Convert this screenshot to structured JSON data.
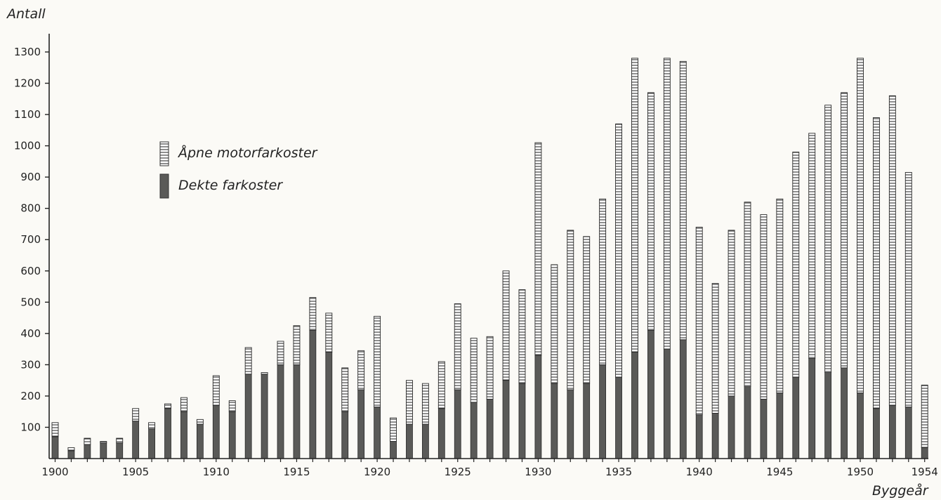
{
  "chart_data": {
    "type": "bar",
    "stacked": true,
    "title": "",
    "ylabel": "Antall",
    "xlabel": "Byggeår",
    "ylim": [
      0,
      1300
    ],
    "yticks": [
      100,
      200,
      300,
      400,
      500,
      600,
      700,
      800,
      900,
      1000,
      1100,
      1200,
      1300
    ],
    "xtick_labels": [
      "1900",
      "1905",
      "1910",
      "1915",
      "1920",
      "1925",
      "1930",
      "1935",
      "1940",
      "1945",
      "1950",
      "1954"
    ],
    "grid": false,
    "legend_position": "upper-left",
    "categories": [
      1900,
      1901,
      1902,
      1903,
      1904,
      1905,
      1906,
      1907,
      1908,
      1909,
      1910,
      1911,
      1912,
      1913,
      1914,
      1915,
      1916,
      1917,
      1918,
      1919,
      1920,
      1921,
      1922,
      1923,
      1924,
      1925,
      1926,
      1927,
      1928,
      1929,
      1930,
      1931,
      1932,
      1933,
      1934,
      1935,
      1936,
      1937,
      1938,
      1939,
      1940,
      1941,
      1942,
      1943,
      1944,
      1945,
      1946,
      1947,
      1948,
      1949,
      1950,
      1951,
      1952,
      1953,
      1954
    ],
    "series": [
      {
        "name": "Dekte farkoster",
        "pattern": "solid-dark",
        "color": "#555555",
        "values": [
          70,
          25,
          45,
          50,
          50,
          120,
          95,
          160,
          150,
          110,
          170,
          150,
          270,
          270,
          300,
          300,
          410,
          340,
          150,
          220,
          165,
          55,
          110,
          110,
          160,
          220,
          180,
          190,
          250,
          240,
          330,
          240,
          220,
          240,
          300,
          260,
          340,
          410,
          350,
          380,
          140,
          145,
          200,
          230,
          190,
          210,
          260,
          320,
          275,
          290,
          210,
          160,
          170,
          165,
          35
        ]
      },
      {
        "name": "Åpne motorfarkoster",
        "pattern": "horizontal-hatch",
        "color": "#ffffff",
        "values": [
          45,
          10,
          20,
          5,
          15,
          40,
          20,
          15,
          45,
          15,
          95,
          35,
          85,
          5,
          75,
          125,
          105,
          125,
          140,
          125,
          290,
          75,
          140,
          130,
          150,
          275,
          205,
          200,
          350,
          300,
          680,
          380,
          510,
          470,
          530,
          810,
          940,
          760,
          930,
          890,
          600,
          415,
          530,
          590,
          590,
          620,
          720,
          720,
          855,
          880,
          1070,
          930,
          990,
          750,
          200
        ]
      }
    ],
    "colors": {
      "ink": "#222222",
      "dark_fill": "#5a5a58",
      "paper": "#fbfaf6"
    }
  }
}
